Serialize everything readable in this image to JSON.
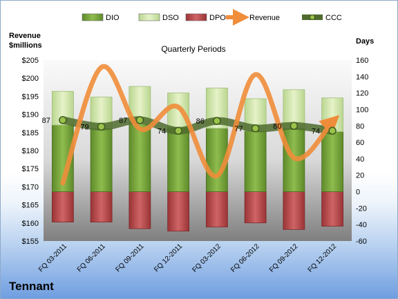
{
  "company": "Tennant",
  "chart_data": {
    "type": "bar",
    "title": "Quarterly Periods",
    "left_axis_label": "Revenue\n$millions",
    "right_axis_label": "Days",
    "categories": [
      "FQ 03-2011",
      "FQ 06-2011",
      "FQ 09-2011",
      "FQ 12-2011",
      "FQ 03-2012",
      "FQ 06-2012",
      "FQ 09-2012",
      "FQ 12-2012"
    ],
    "left_axis": {
      "min": 155,
      "max": 205,
      "step": 5,
      "prefix": "$"
    },
    "right_axis": {
      "min": -60,
      "max": 160,
      "step": 20
    },
    "series": [
      {
        "name": "DIO",
        "kind": "bar",
        "axis": "right",
        "color": "#7aa23a",
        "values": [
          -7,
          -6,
          -3,
          -5,
          -4,
          -6,
          -5,
          -6
        ]
      },
      {
        "name": "DSO",
        "kind": "bar",
        "axis": "right",
        "color": "#d4e8a8",
        "values": [
          -2,
          -2,
          -2,
          -3,
          -2,
          -2,
          -2,
          -2
        ]
      },
      {
        "name": "DPO",
        "kind": "bar",
        "axis": "right",
        "color": "#b84a4c",
        "values": [
          -37,
          -37,
          -45,
          -48,
          -43,
          -38,
          -46,
          -42
        ]
      },
      {
        "name": "Revenue",
        "kind": "line",
        "axis": "left",
        "color": "#ef8d3a",
        "values": [
          171,
          203,
          186,
          192,
          173,
          201,
          178,
          188
        ]
      },
      {
        "name": "CCC",
        "kind": "line",
        "axis": "right",
        "color": "#4a6a2c",
        "values": [
          87,
          79,
          87,
          74,
          86,
          77,
          80,
          74
        ],
        "labels": [
          "87",
          "79",
          "87",
          "74",
          "86",
          "77",
          "80",
          "74"
        ]
      }
    ],
    "bars": {
      "dio_top": [
        81,
        77,
        82,
        78,
        77,
        74,
        77,
        73
      ],
      "dso_top": [
        122,
        115,
        128,
        120,
        126,
        113,
        124,
        114
      ],
      "dpo_bottom": [
        -37,
        -37,
        -45,
        -48,
        -43,
        -38,
        -46,
        -42
      ]
    },
    "legend": {
      "position": "top",
      "items": [
        "DIO",
        "DSO",
        "DPO",
        "Revenue",
        "CCC"
      ]
    },
    "grid": false
  }
}
